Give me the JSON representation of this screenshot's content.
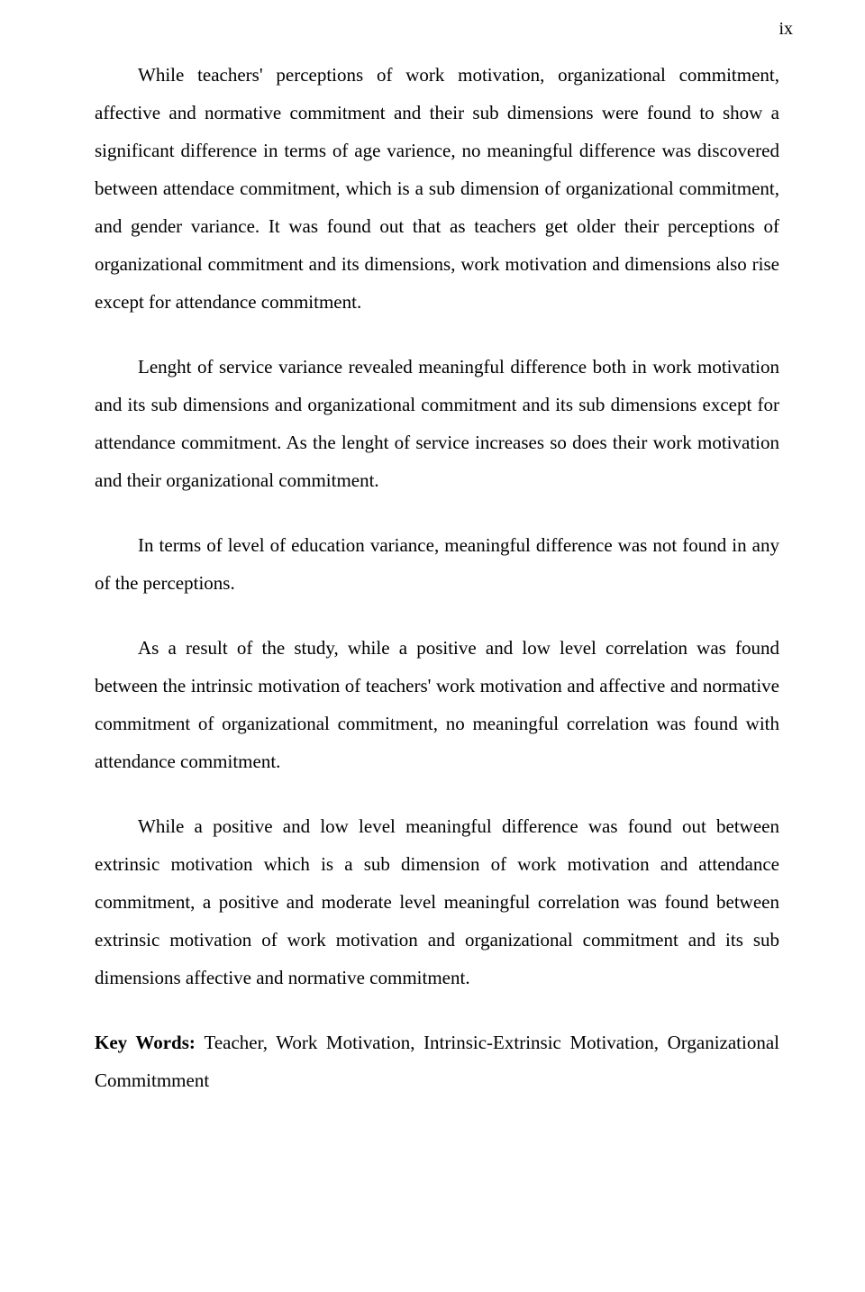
{
  "page_number": "ix",
  "paragraphs": {
    "p1": "While teachers' perceptions of work motivation, organizational commitment, affective and normative commitment and their sub dimensions were found to show a significant difference in terms of age varience, no meaningful difference was discovered between attendace commitment, which is a sub dimension of organizational commitment, and gender variance. It was found out that as teachers get older their perceptions of organizational commitment and its dimensions, work motivation and dimensions also rise except for attendance commitment.",
    "p2": "Lenght of service variance revealed meaningful difference both in work motivation and its sub dimensions and organizational commitment and its sub dimensions except for attendance commitment. As the lenght of service increases so does their work motivation and their organizational commitment.",
    "p3": "In terms of level of education variance, meaningful difference was not found in any of the perceptions.",
    "p4": "As a result of the study, while a positive and low level correlation was found between the intrinsic motivation of teachers' work motivation and affective and normative commitment of organizational commitment, no meaningful correlation was found with attendance commitment.",
    "p5": "While a positive and low level meaningful difference was found out between extrinsic motivation which is a sub dimension of work motivation and attendance commitment, a positive and moderate level meaningful correlation was found between extrinsic motivation of work motivation and organizational commitment and its sub dimensions affective and normative commitment."
  },
  "keywords": {
    "label": "Key Words: ",
    "text": "Teacher, Work Motivation, Intrinsic-Extrinsic Motivation, Organizational Commitmment"
  }
}
